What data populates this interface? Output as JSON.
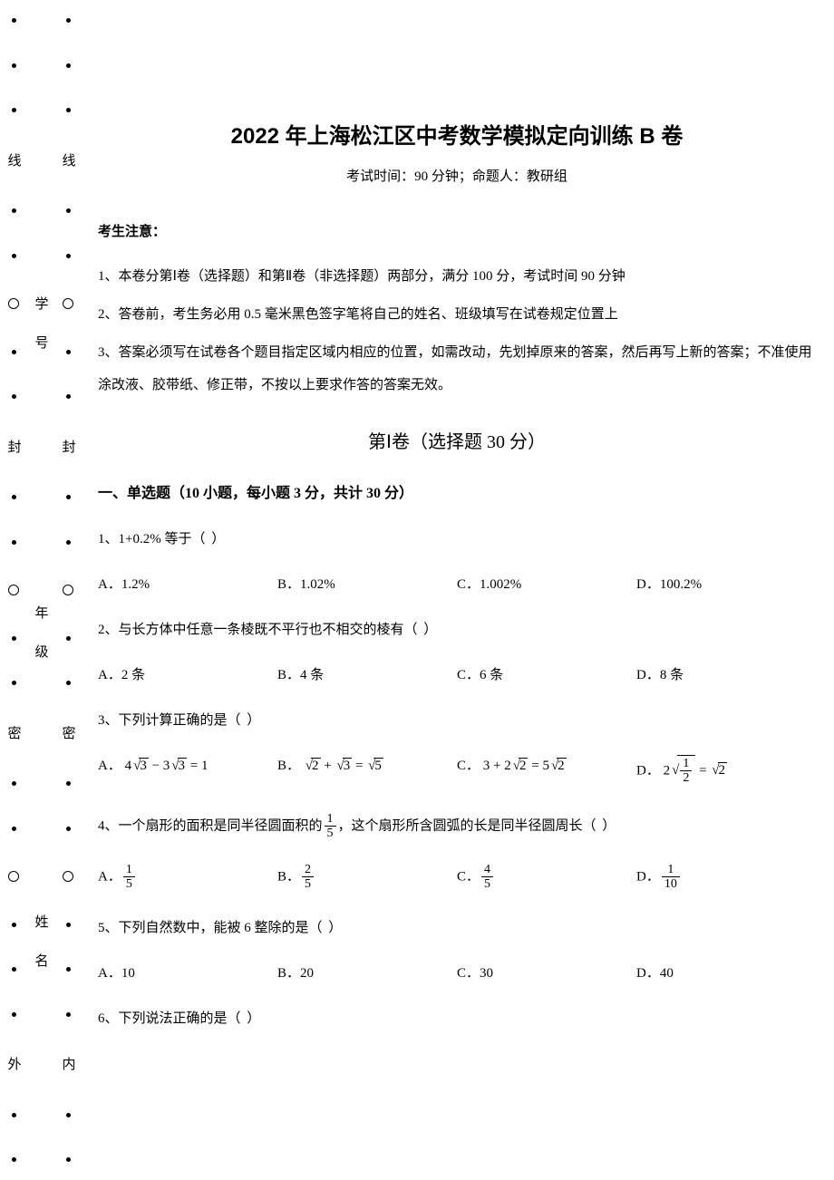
{
  "binding": {
    "outer_chars": [
      "线",
      "封",
      "密",
      "外"
    ],
    "inner_chars": [
      "线",
      "封",
      "密",
      "内"
    ],
    "field_labels": [
      "学号",
      "年级",
      "姓名"
    ]
  },
  "header": {
    "title": "2022 年上海松江区中考数学模拟定向训练 B 卷",
    "subtitle": "考试时间：90 分钟；命题人：教研组"
  },
  "notice": {
    "head": "考生注意：",
    "lines": [
      "1、本卷分第Ⅰ卷（选择题）和第Ⅱ卷（非选择题）两部分，满分 100 分，考试时间 90 分钟",
      "2、答卷前，考生务必用 0.5 毫米黑色签字笔将自己的姓名、班级填写在试卷规定位置上",
      "3、答案必须写在试卷各个题目指定区域内相应的位置，如需改动，先划掉原来的答案，然后再写上新的答案；不准使用涂改液、胶带纸、修正带，不按以上要求作答的答案无效。"
    ]
  },
  "section1": {
    "title": "第Ⅰ卷（选择题   30 分）",
    "part_head": "一、单选题（10 小题，每小题 3 分，共计 30 分）"
  },
  "questions": {
    "q1": {
      "stem_prefix": "1、1+0.2% 等于（",
      "stem_suffix": "）",
      "opts": {
        "A": "A．1.2%",
        "B": "B．1.02%",
        "C": "C．1.002%",
        "D": "D．100.2%"
      }
    },
    "q2": {
      "stem_prefix": "2、与长方体中任意一条棱既不平行也不相交的棱有（",
      "stem_suffix": "）",
      "opts": {
        "A": "A．2 条",
        "B": "B．4 条",
        "C": "C．6 条",
        "D": "D．8 条"
      }
    },
    "q3": {
      "stem_prefix": "3、下列计算正确的是（",
      "stem_suffix": "）",
      "A_label": "A．",
      "B_label": "B．",
      "C_label": "C．",
      "D_label": "D．",
      "A_expr": {
        "lhs_coef1": "4",
        "rad1": "3",
        "lhs_coef2": "3",
        "rad2": "3",
        "rhs": "1"
      },
      "B_expr": {
        "rad1": "2",
        "rad2": "3",
        "rhs_rad": "5"
      },
      "C_expr": {
        "a": "3",
        "b_coef": "2",
        "b_rad": "2",
        "rhs_coef": "5",
        "rhs_rad": "2"
      },
      "D_expr": {
        "out_coef": "2",
        "frac_n": "1",
        "frac_d": "2",
        "rhs_rad": "2"
      }
    },
    "q4": {
      "stem_p1": "4、一个扇形的面积是同半径圆面积的",
      "frac1_n": "1",
      "frac1_d": "5",
      "stem_p2": "，这个扇形所含圆弧的长是同半径圆周长（",
      "stem_suffix": "）",
      "A_label": "A．",
      "A_n": "1",
      "A_d": "5",
      "B_label": "B．",
      "B_n": "2",
      "B_d": "5",
      "C_label": "C．",
      "C_n": "4",
      "C_d": "5",
      "D_label": "D．",
      "D_n": "1",
      "D_d": "10"
    },
    "q5": {
      "stem_prefix": "5、下列自然数中，能被 6 整除的是（",
      "stem_suffix": "）",
      "opts": {
        "A": "A．10",
        "B": "B．20",
        "C": "C．30",
        "D": "D．40"
      }
    },
    "q6": {
      "stem_prefix": "6、下列说法正确的是（",
      "stem_suffix": "）"
    }
  }
}
